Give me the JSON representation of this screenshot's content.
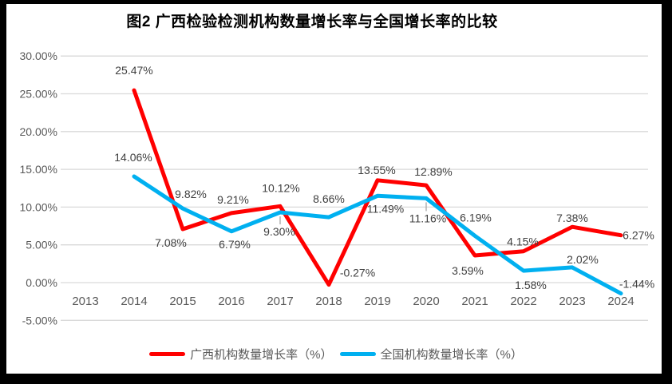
{
  "title": "图2 广西检验检测机构数量增长率与全国增长率的比较",
  "chart_data": {
    "type": "line",
    "categories": [
      "2013",
      "2014",
      "2015",
      "2016",
      "2017",
      "2018",
      "2019",
      "2020",
      "2021",
      "2022",
      "2023",
      "2024"
    ],
    "y_ticks": [
      "30.00%",
      "25.00%",
      "20.00%",
      "15.00%",
      "10.00%",
      "5.00%",
      "0.00%",
      "-5.00%"
    ],
    "ylim": [
      -5,
      30
    ],
    "grid": true,
    "legend_position": "bottom",
    "axis_text_color": "#595959",
    "data_label_color": "#404040",
    "gridline_color": "#d9d9d9",
    "leader_line_color": "#a6a6a6",
    "series": [
      {
        "key": "guangxi",
        "name": "广西机构数量增长率（%）",
        "color": "#ff0000",
        "values": [
          null,
          25.47,
          7.08,
          9.21,
          10.12,
          -0.27,
          13.55,
          12.89,
          3.59,
          4.15,
          7.38,
          6.27
        ],
        "labels": [
          null,
          "25.47%",
          "7.08%",
          "9.21%",
          "10.12%",
          "-0.27%",
          "13.55%",
          "12.89%",
          "3.59%",
          "4.15%",
          "7.38%",
          "6.27%"
        ]
      },
      {
        "key": "national",
        "name": "全国机构数量增长率（%）",
        "color": "#00b0f0",
        "values": [
          null,
          14.06,
          9.82,
          6.79,
          9.3,
          8.66,
          11.49,
          11.16,
          6.19,
          1.58,
          2.02,
          -1.44
        ],
        "labels": [
          null,
          "14.06%",
          "9.82%",
          "6.79%",
          "9.30%",
          "8.66%",
          "11.49%",
          "11.16%",
          "6.19%",
          "1.58%",
          "2.02%",
          "-1.44%"
        ]
      }
    ]
  }
}
